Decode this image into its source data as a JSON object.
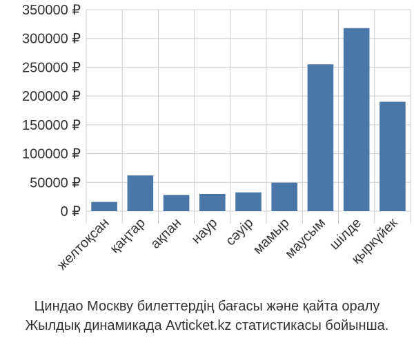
{
  "chart_data": {
    "type": "bar",
    "categories": [
      "желтоқсан",
      "қаңтар",
      "ақпан",
      "наур",
      "сәуір",
      "мамыр",
      "маусым",
      "шілде",
      "қыркүйек"
    ],
    "series": [
      {
        "values": [
          16000,
          62000,
          28000,
          30000,
          32500,
          49500,
          255000,
          318000,
          190000
        ]
      }
    ],
    "ylim": [
      0,
      350000
    ],
    "yticks": [
      "0 ₽",
      "50000 ₽",
      "100000 ₽",
      "150000 ₽",
      "200000 ₽",
      "250000 ₽",
      "300000 ₽",
      "350000 ₽"
    ],
    "ytick_values": [
      0,
      50000,
      100000,
      150000,
      200000,
      250000,
      300000,
      350000
    ],
    "bar_color": "#4a76a8",
    "grid": true,
    "grid_color": "#cccccc"
  },
  "caption": {
    "line1": "Циндао Москву билеттердің бағасы және қайта оралу",
    "line2": "Жылдық динамикада Avticket.kz статистикасы бойынша."
  }
}
